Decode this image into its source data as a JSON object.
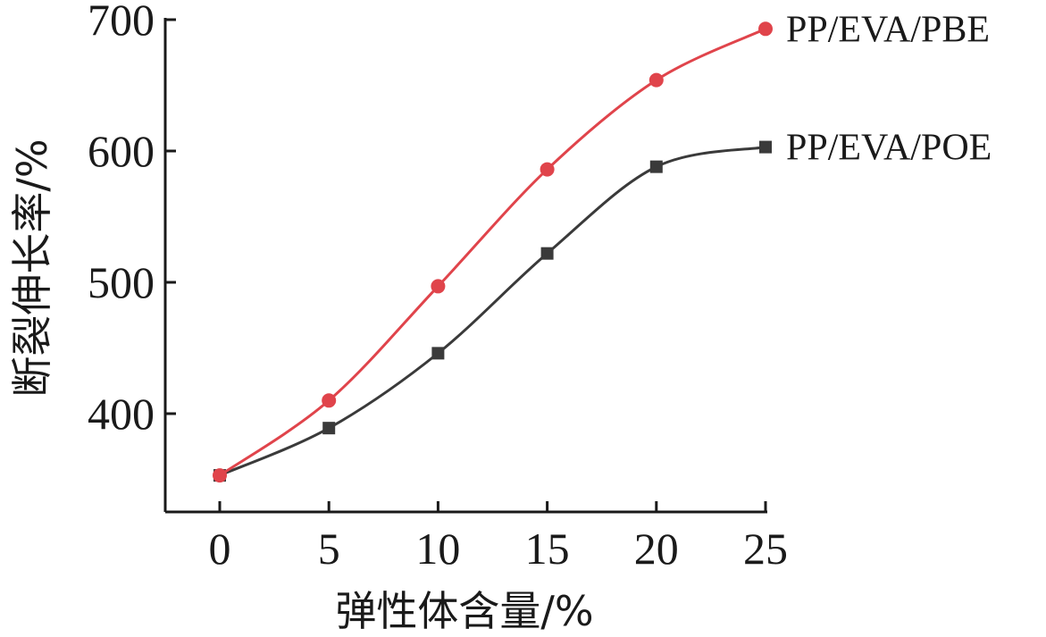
{
  "chart_data": {
    "type": "line",
    "xlabel": "弹性体含量/%",
    "ylabel": "断裂伸长率/%",
    "xlim": [
      -5,
      25
    ],
    "ylim": [
      325,
      700
    ],
    "xticks": [
      0,
      5,
      10,
      15,
      20,
      25
    ],
    "yticks": [
      400,
      500,
      600,
      700
    ],
    "grid": false,
    "legend": "inline labels at right end of each series",
    "x": [
      0,
      5,
      10,
      15,
      20,
      25
    ],
    "series": [
      {
        "name": "PP/EVA/PBE",
        "marker": "circle",
        "color": "#e0444b",
        "values": [
          353,
          410,
          497,
          586,
          654,
          693
        ]
      },
      {
        "name": "PP/EVA/POE",
        "marker": "square",
        "color": "#3a3a3a",
        "values": [
          353,
          389,
          446,
          522,
          588,
          603
        ]
      }
    ]
  }
}
